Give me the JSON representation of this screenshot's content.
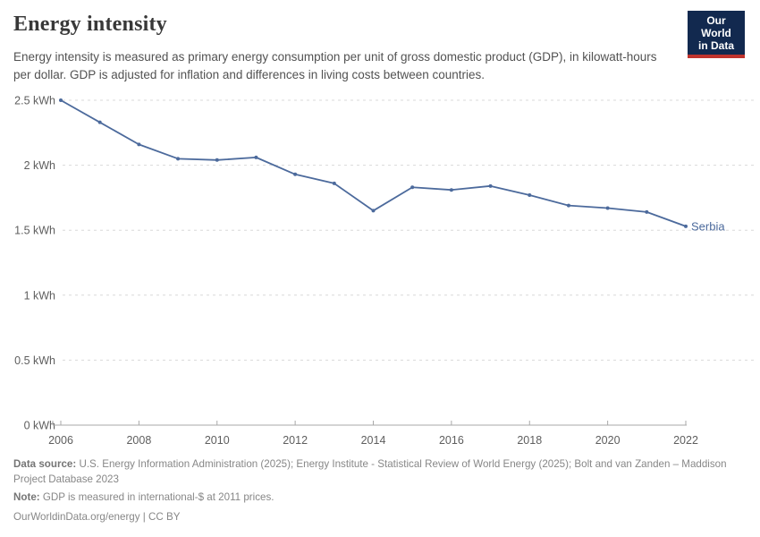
{
  "header": {
    "title": "Energy intensity",
    "subtitle": "Energy intensity is measured as primary energy consumption per unit of gross domestic product (GDP), in kilowatt-hours per dollar. GDP is adjusted for inflation and differences in living costs between countries."
  },
  "logo": {
    "line1": "Our World",
    "line2": "in Data"
  },
  "colors": {
    "line": "#4c6a9c",
    "logo_bg": "#12294f",
    "logo_accent": "#c0332d",
    "grid": "#d9d9d9",
    "axis": "#a8a8a8",
    "tick_text": "#5e5e5e"
  },
  "chart_data": {
    "type": "line",
    "title": "Energy intensity",
    "unit": "kWh",
    "x": [
      2006,
      2007,
      2008,
      2009,
      2010,
      2011,
      2012,
      2013,
      2014,
      2015,
      2016,
      2017,
      2018,
      2019,
      2020,
      2021,
      2022
    ],
    "series": [
      {
        "name": "Serbia",
        "color": "#4c6a9c",
        "values": [
          2.5,
          2.33,
          2.16,
          2.05,
          2.04,
          2.06,
          1.93,
          1.86,
          1.65,
          1.83,
          1.81,
          1.84,
          1.77,
          1.69,
          1.67,
          1.64,
          1.53
        ]
      }
    ],
    "ylim": [
      0,
      2.5
    ],
    "yticks": [
      {
        "value": 0,
        "label": "0 kWh"
      },
      {
        "value": 0.5,
        "label": "0.5 kWh"
      },
      {
        "value": 1,
        "label": "1 kWh"
      },
      {
        "value": 1.5,
        "label": "1.5 kWh"
      },
      {
        "value": 2,
        "label": "2 kWh"
      },
      {
        "value": 2.5,
        "label": "2.5 kWh"
      }
    ],
    "xticks": [
      2006,
      2008,
      2010,
      2012,
      2014,
      2016,
      2018,
      2020,
      2022
    ],
    "grid": "dashed-horizontal",
    "legend_position": "end-of-line",
    "end_label": "Serbia"
  },
  "footer": {
    "data_source_label": "Data source:",
    "data_source_text": " U.S. Energy Information Administration (2025); Energy Institute - Statistical Review of World Energy (2025); Bolt and van Zanden – Maddison Project Database 2023",
    "note_label": "Note:",
    "note_text": " GDP is measured in international-$ at 2011 prices.",
    "origin_url": "OurWorldinData.org/energy | CC BY"
  }
}
